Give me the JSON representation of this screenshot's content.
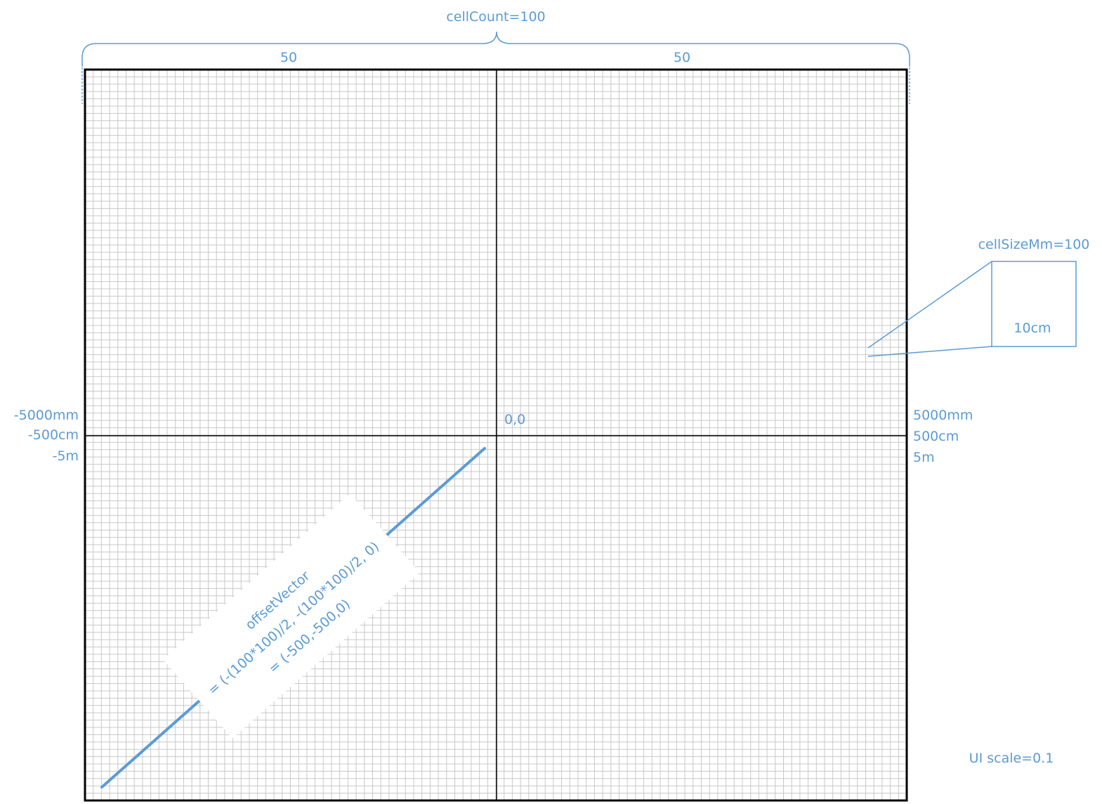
{
  "colors": {
    "accent": "#5b9bd5",
    "grid": "#c8c8c8",
    "frame": "#000000",
    "background": "#ffffff",
    "label_box": "#ffffff"
  },
  "labels": {
    "cell_count": "cellCount=100",
    "left_half": "50",
    "right_half": "50",
    "origin": "0,0",
    "left_extent": [
      "-5000mm",
      "-500cm",
      "-5m"
    ],
    "right_extent": [
      "5000mm",
      "500cm",
      "5m"
    ],
    "cell_size": "cellSizeMm=100",
    "cell_size_cm": "10cm",
    "offset_vector": [
      "offsetVector",
      "= (-(100*100)/2, -(100*100)/2, 0)",
      "= (-500,-500,0)"
    ],
    "ui_scale": "UI scale=0.1"
  },
  "grid": {
    "cell_count": 100
  }
}
